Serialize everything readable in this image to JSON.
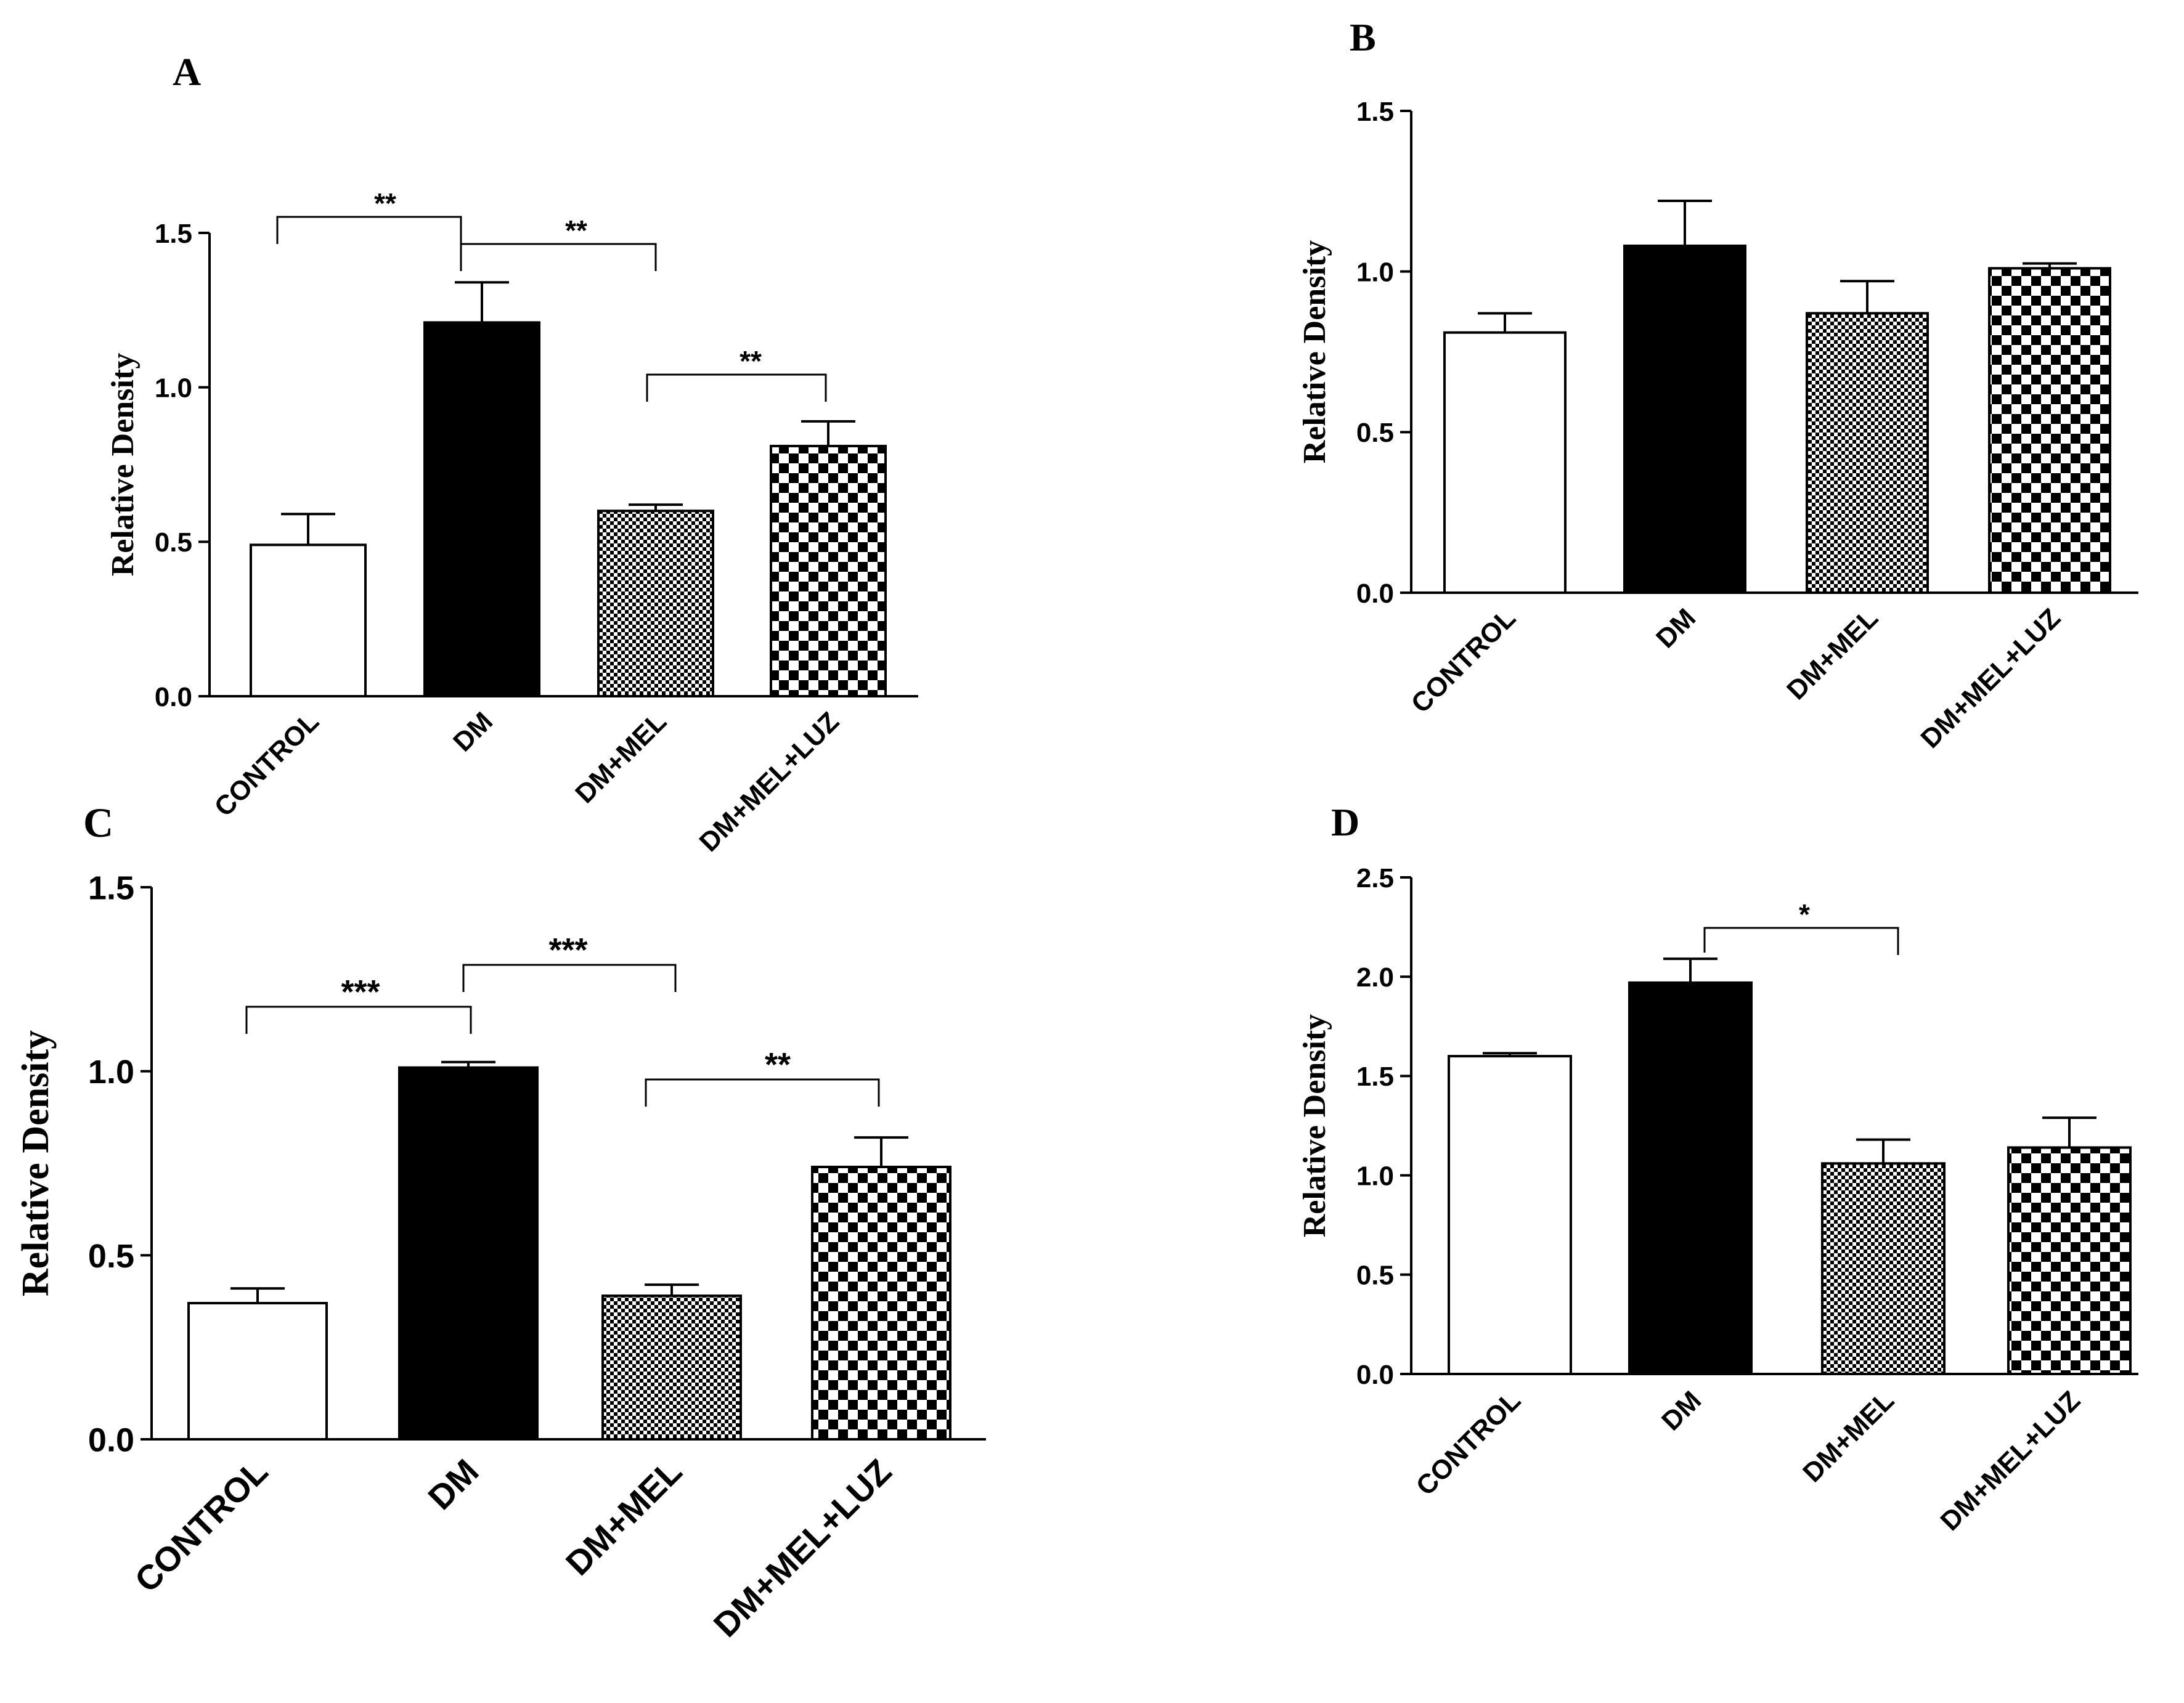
{
  "chart_data": [
    {
      "panel": "A",
      "type": "bar",
      "ylabel": "Relative Density",
      "ylim": [
        0,
        1.5
      ],
      "yticks": [
        "0.0",
        "0.5",
        "1.0",
        "1.5"
      ],
      "categories": [
        "CONTROL",
        "DM",
        "DM+MEL",
        "DM+MEL+LUZ"
      ],
      "values": [
        0.49,
        1.21,
        0.6,
        0.81
      ],
      "errors": [
        0.1,
        0.13,
        0.02,
        0.08
      ],
      "significance": [
        {
          "from": 0,
          "to": 1,
          "label": "**"
        },
        {
          "from": 1,
          "to": 2,
          "label": "**"
        },
        {
          "from": 2,
          "to": 3,
          "label": "**"
        }
      ]
    },
    {
      "panel": "B",
      "type": "bar",
      "ylabel": "Relative Density",
      "ylim": [
        0,
        1.5
      ],
      "yticks": [
        "0.0",
        "0.5",
        "1.0",
        "1.5"
      ],
      "categories": [
        "CONTROL",
        "DM",
        "DM+MEL",
        "DM+MEL+LUZ"
      ],
      "values": [
        0.81,
        1.08,
        0.87,
        1.01
      ],
      "errors": [
        0.06,
        0.14,
        0.1,
        0.015
      ],
      "significance": []
    },
    {
      "panel": "C",
      "type": "bar",
      "ylabel": "Relative Density",
      "ylim": [
        0,
        1.5
      ],
      "yticks": [
        "0.0",
        "0.5",
        "1.0",
        "1.5"
      ],
      "categories": [
        "CONTROL",
        "DM",
        "DM+MEL",
        "DM+MEL+LUZ"
      ],
      "values": [
        0.37,
        1.01,
        0.39,
        0.74
      ],
      "errors": [
        0.04,
        0.015,
        0.03,
        0.08
      ],
      "significance": [
        {
          "from": 0,
          "to": 1,
          "label": "***"
        },
        {
          "from": 1,
          "to": 2,
          "label": "***"
        },
        {
          "from": 2,
          "to": 3,
          "label": "**"
        }
      ]
    },
    {
      "panel": "D",
      "type": "bar",
      "ylabel": "Relative Density",
      "ylim": [
        0,
        2.5
      ],
      "yticks": [
        "0.0",
        "0.5",
        "1.0",
        "1.5",
        "2.0",
        "2.5"
      ],
      "categories": [
        "CONTROL",
        "DM",
        "DM+MEL",
        "DM+MEL+LUZ"
      ],
      "values": [
        1.6,
        1.97,
        1.06,
        1.14
      ],
      "errors": [
        0.015,
        0.12,
        0.12,
        0.15
      ],
      "significance": [
        {
          "from": 1,
          "to": 2,
          "label": "*"
        }
      ]
    }
  ]
}
